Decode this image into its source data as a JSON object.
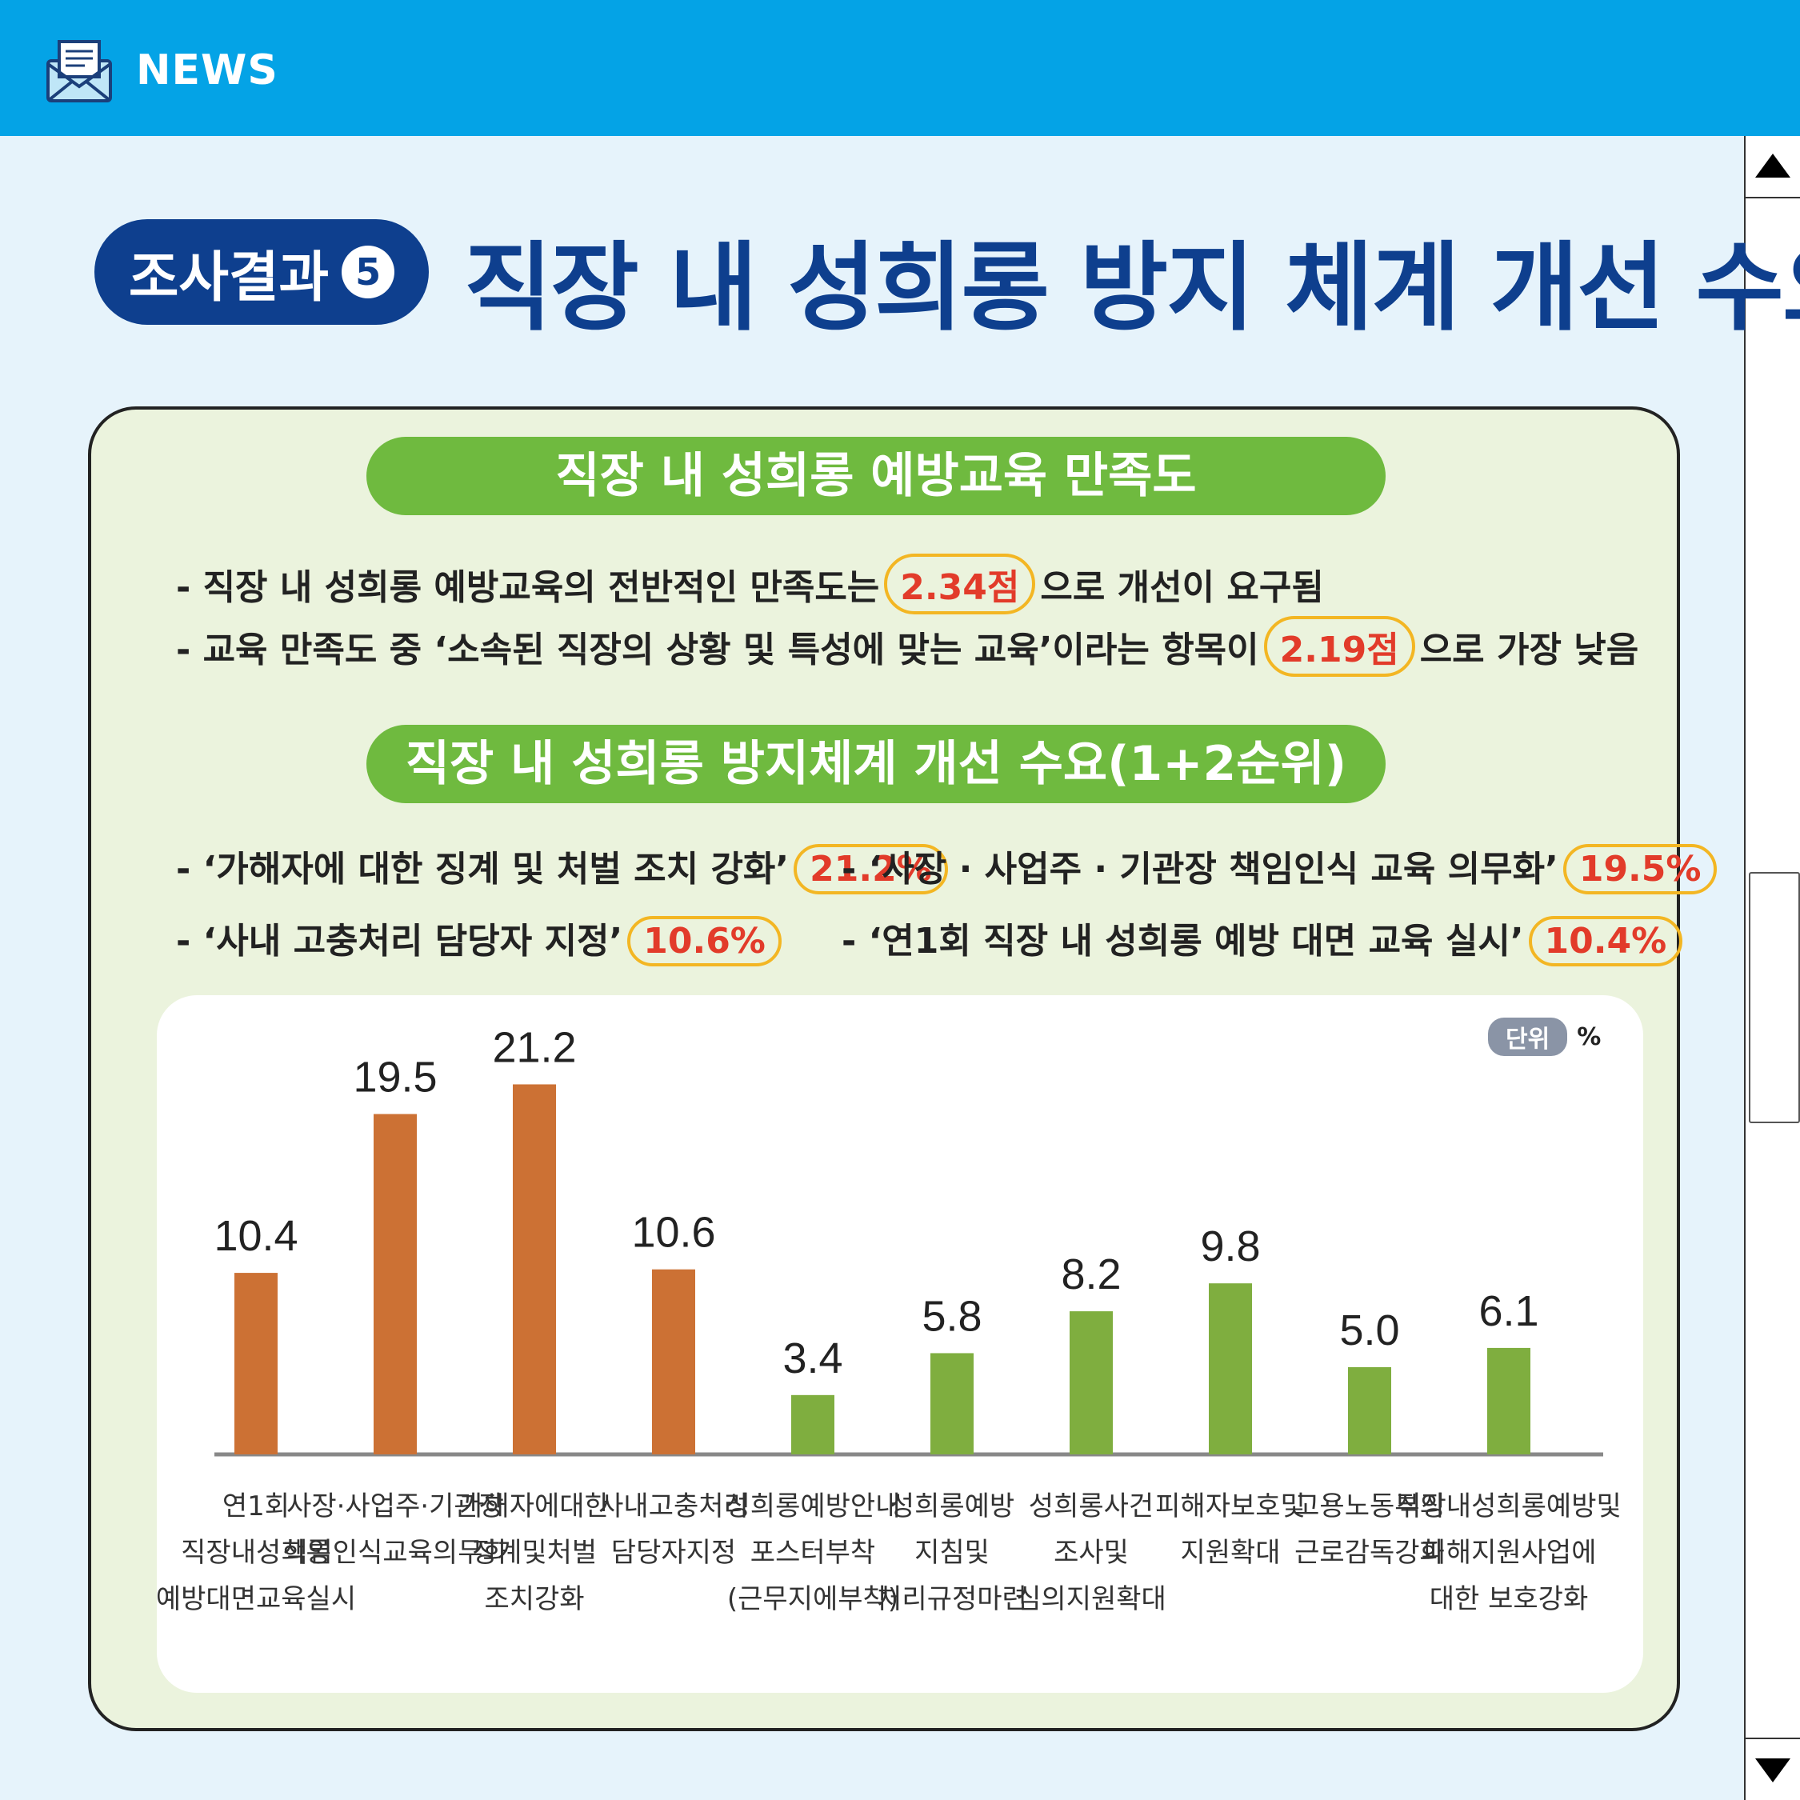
{
  "header": {
    "label": "NEWS",
    "icon": "envelope-icon"
  },
  "title": {
    "badge": "조사결과",
    "badge_number": "5",
    "main": "직장 내 성희롱 방지 체계 개선 수요"
  },
  "section1": {
    "heading": "직장 내 성희롱 예방교육 만족도",
    "line1_pre": "- 직장 내 성희롱 예방교육의 전반적인 만족도는",
    "line1_value": "2.34점",
    "line1_post": "으로 개선이 요구됨",
    "line2_pre": "- 교육 만족도 중 ‘소속된 직장의 상황 및 특성에 맞는 교육’이라는 항목이",
    "line2_value": "2.19점",
    "line2_post": "으로 가장 낮음"
  },
  "section2": {
    "heading": "직장 내 성희롱 방지체계 개선 수요(1+2순위)",
    "items": [
      {
        "text": "- ‘가해자에 대한 징계 및 처벌 조치 강화’",
        "value": "21.2%"
      },
      {
        "text": "- ‘사장 · 사업주 · 기관장 책임인식 교육 의무화’",
        "value": "19.5%"
      },
      {
        "text": "- ‘사내 고충처리 담당자 지정’",
        "value": "10.6%"
      },
      {
        "text": "- ‘연1회 직장 내 성희롱 예방 대면 교육 실시’",
        "value": "10.4%"
      }
    ]
  },
  "unit": {
    "tag": "단위",
    "symbol": "%"
  },
  "colors": {
    "header": "#04a3e6",
    "navy": "#0e3f8e",
    "green": "#6fba3f",
    "bar_top4": "#cc7134",
    "bar_rest": "#7fae3f",
    "highlight": "#e23b2a"
  },
  "chart_data": {
    "type": "bar",
    "categories": [
      [
        "연1회",
        "직장내성희롱",
        "예방대면교육실시"
      ],
      [
        "사장·사업주·기관장",
        "책임인식교육의무화"
      ],
      [
        "가해자에대한",
        "징계및처벌",
        "조치강화"
      ],
      [
        "사내고충처리",
        "담당자지정"
      ],
      [
        "성희롱예방안내",
        "포스터부착",
        "(근무지에부착)"
      ],
      [
        "성희롱예방",
        "지침및",
        "처리규정마련"
      ],
      [
        "성희롱사건",
        "조사및",
        "심의지원확대"
      ],
      [
        "피해자보호및",
        "지원확대"
      ],
      [
        "고용노동부의",
        "근로감독강화"
      ],
      [
        "직장내성희롱예방및",
        "피해지원사업에",
        "대한 보호강화"
      ]
    ],
    "values": [
      10.4,
      19.5,
      21.2,
      10.6,
      3.4,
      5.8,
      8.2,
      9.8,
      5.0,
      6.1
    ],
    "value_labels": [
      "10.4",
      "19.5",
      "21.2",
      "10.6",
      "3.4",
      "5.8",
      "8.2",
      "9.8",
      "5.0",
      "6.1"
    ],
    "highlight_count": 4,
    "ylim": [
      0,
      22
    ],
    "grid": false,
    "title": "",
    "xlabel": "",
    "ylabel": ""
  }
}
